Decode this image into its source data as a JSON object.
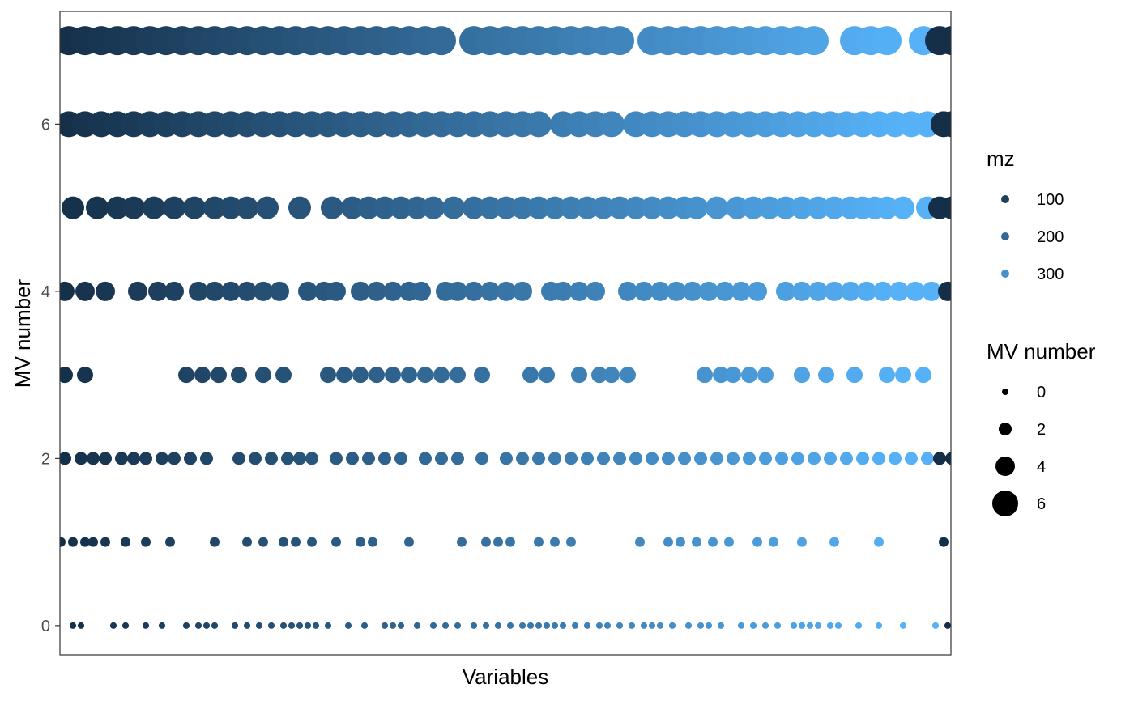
{
  "chart_data": {
    "type": "scatter",
    "xlabel": "Variables",
    "ylabel": "MV number",
    "ylim": [
      -0.35,
      7.35
    ],
    "y_ticks": [
      0,
      2,
      4,
      6
    ],
    "x_ticks_shown": false,
    "grid": false,
    "legend_placement": "right",
    "color_scale": {
      "title": "mz",
      "low_color": "#132B43",
      "high_color": "#56B1F7",
      "range": [
        50,
        380
      ],
      "breaks": [
        {
          "label": "100",
          "value": 100
        },
        {
          "label": "200",
          "value": 200
        },
        {
          "label": "300",
          "value": 300
        }
      ]
    },
    "size_scale": {
      "title": "MV number",
      "breaks": [
        {
          "label": "0",
          "value": 0
        },
        {
          "label": "2",
          "value": 2
        },
        {
          "label": "4",
          "value": 4
        },
        {
          "label": "6",
          "value": 6
        }
      ]
    },
    "series": [
      {
        "mv": 0,
        "mz": [
          55,
          85,
          95,
          135,
          150,
          175,
          195,
          225,
          240,
          250,
          260,
          285,
          300,
          315,
          330,
          345,
          355,
          365,
          375,
          385,
          400,
          425,
          445,
          470,
          480,
          490,
          510,
          530,
          545,
          560,
          580,
          595,
          610,
          625,
          640,
          650,
          660,
          670,
          680,
          690,
          705,
          720,
          735,
          745,
          760,
          775,
          790,
          800,
          810,
          825,
          845,
          860,
          870,
          885,
          910,
          925,
          940,
          955,
          975,
          985,
          995,
          1005,
          1020,
          1030,
          1055,
          1080,
          1110,
          1150,
          1165,
          1180
        ]
      },
      {
        "mv": 1,
        "mz": [
          55,
          70,
          85,
          100,
          110,
          125,
          150,
          175,
          205,
          260,
          300,
          320,
          345,
          360,
          380,
          410,
          440,
          455,
          500,
          565,
          595,
          610,
          625,
          660,
          680,
          700,
          785,
          820,
          835,
          855,
          875,
          895,
          930,
          950,
          985,
          1025,
          1080,
          1160,
          1175
        ]
      },
      {
        "mv": 2,
        "mz": [
          55,
          75,
          95,
          110,
          125,
          145,
          160,
          175,
          195,
          210,
          230,
          250,
          290,
          310,
          330,
          350,
          365,
          380,
          410,
          430,
          450,
          470,
          490,
          520,
          540,
          560,
          590,
          620,
          640,
          660,
          680,
          700,
          720,
          740,
          760,
          780,
          800,
          820,
          840,
          860,
          880,
          900,
          920,
          940,
          960,
          980,
          1000,
          1020,
          1040,
          1060,
          1080,
          1100,
          1120,
          1140,
          1155,
          1170
        ]
      },
      {
        "mv": 3,
        "mz": [
          55,
          75,
          100,
          225,
          245,
          265,
          290,
          320,
          345,
          400,
          420,
          440,
          460,
          480,
          500,
          520,
          540,
          560,
          590,
          650,
          670,
          710,
          735,
          750,
          770,
          865,
          885,
          900,
          920,
          940,
          985,
          1015,
          1050,
          1090,
          1110,
          1135
        ]
      },
      {
        "mv": 4,
        "mz": [
          55,
          75,
          100,
          125,
          165,
          190,
          210,
          240,
          260,
          280,
          300,
          320,
          340,
          375,
          395,
          410,
          440,
          460,
          480,
          500,
          515,
          545,
          560,
          580,
          600,
          620,
          640,
          675,
          690,
          710,
          730,
          770,
          790,
          810,
          830,
          850,
          870,
          890,
          910,
          930,
          965,
          985,
          1005,
          1025,
          1045,
          1065,
          1085,
          1105,
          1125,
          1145,
          1165
        ]
      },
      {
        "mv": 5,
        "mz": [
          55,
          85,
          115,
          140,
          160,
          185,
          210,
          235,
          260,
          280,
          300,
          325,
          365,
          405,
          430,
          450,
          470,
          490,
          510,
          530,
          555,
          580,
          600,
          620,
          640,
          660,
          680,
          700,
          720,
          740,
          760,
          780,
          800,
          820,
          840,
          855,
          880,
          905,
          925,
          945,
          965,
          985,
          1005,
          1025,
          1045,
          1060,
          1075,
          1090,
          1110,
          1140,
          1155,
          1170
        ]
      },
      {
        "mv": 6,
        "mz": [
          55,
          80,
          100,
          120,
          140,
          160,
          180,
          200,
          220,
          240,
          260,
          280,
          300,
          320,
          340,
          360,
          380,
          400,
          420,
          440,
          460,
          480,
          500,
          520,
          540,
          560,
          580,
          600,
          620,
          640,
          660,
          690,
          710,
          730,
          750,
          780,
          800,
          820,
          840,
          860,
          880,
          900,
          920,
          940,
          960,
          980,
          1000,
          1020,
          1040,
          1060,
          1080,
          1100,
          1120,
          1140,
          1160,
          1170
        ]
      },
      {
        "mv": 7,
        "mz": [
          55,
          80,
          100,
          120,
          140,
          160,
          180,
          200,
          220,
          240,
          260,
          280,
          300,
          320,
          340,
          360,
          380,
          400,
          420,
          440,
          460,
          480,
          500,
          520,
          540,
          580,
          600,
          620,
          640,
          660,
          680,
          700,
          720,
          740,
          760,
          800,
          820,
          840,
          860,
          880,
          900,
          920,
          940,
          960,
          980,
          1000,
          1050,
          1070,
          1090,
          1135,
          1155,
          1170
        ]
      }
    ]
  }
}
